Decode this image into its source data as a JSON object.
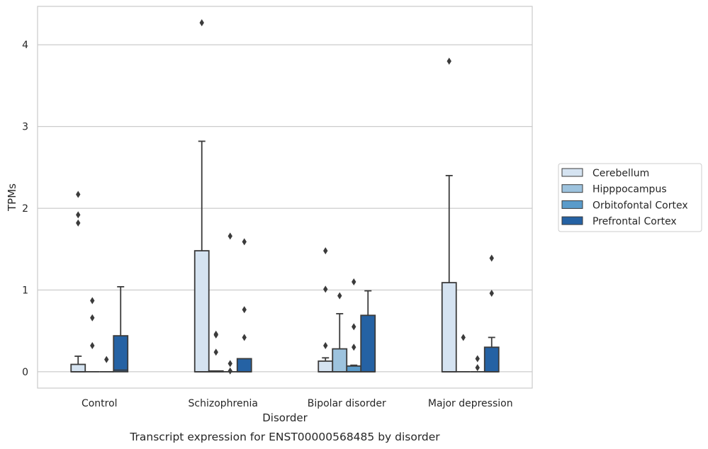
{
  "chart_data": {
    "type": "box",
    "title": "",
    "caption": "Transcript expression for ENST00000568485 by disorder",
    "xlabel": "Disorder",
    "ylabel": "TPMs",
    "ylim": [
      -0.2,
      4.47
    ],
    "yticks": [
      0,
      1,
      2,
      3,
      4
    ],
    "grid": "horizontal",
    "legend_position": "right",
    "categories": [
      "Control",
      "Schizophrenia",
      "Bipolar disorder",
      "Major depression"
    ],
    "series": [
      {
        "name": "Cerebellum",
        "color": "#d5e3f1",
        "boxes": [
          {
            "q1": 0.0,
            "median": 0.0,
            "q3": 0.09,
            "whisker_low": 0.0,
            "whisker_high": 0.19,
            "outliers": [
              1.82,
              1.92,
              2.17
            ]
          },
          {
            "q1": 0.0,
            "median": 0.0,
            "q3": 1.48,
            "whisker_low": 0.0,
            "whisker_high": 2.82,
            "outliers": [
              4.27
            ]
          },
          {
            "q1": 0.0,
            "median": 0.0,
            "q3": 0.13,
            "whisker_low": 0.0,
            "whisker_high": 0.17,
            "outliers": [
              0.32,
              1.01,
              1.48
            ]
          },
          {
            "q1": 0.0,
            "median": 0.0,
            "q3": 1.09,
            "whisker_low": 0.0,
            "whisker_high": 2.4,
            "outliers": [
              3.8
            ]
          }
        ]
      },
      {
        "name": "Hipppocampus",
        "color": "#9dc3de",
        "boxes": [
          {
            "q1": 0.0,
            "median": 0.0,
            "q3": 0.0,
            "whisker_low": 0.0,
            "whisker_high": 0.0,
            "outliers": [
              0.32,
              0.66,
              0.87
            ]
          },
          {
            "q1": 0.0,
            "median": 0.0,
            "q3": 0.01,
            "whisker_low": 0.0,
            "whisker_high": 0.01,
            "outliers": [
              0.24,
              0.45,
              0.46
            ]
          },
          {
            "q1": 0.0,
            "median": 0.0,
            "q3": 0.28,
            "whisker_low": 0.0,
            "whisker_high": 0.71,
            "outliers": [
              0.93
            ]
          },
          {
            "q1": 0.0,
            "median": 0.0,
            "q3": 0.0,
            "whisker_low": 0.0,
            "whisker_high": 0.0,
            "outliers": [
              0.42
            ]
          }
        ]
      },
      {
        "name": "Orbitofontal Cortex",
        "color": "#5a9bca",
        "boxes": [
          {
            "q1": 0.0,
            "median": 0.0,
            "q3": 0.0,
            "whisker_low": 0.0,
            "whisker_high": 0.0,
            "outliers": [
              0.15
            ]
          },
          {
            "q1": 0.0,
            "median": 0.0,
            "q3": 0.0,
            "whisker_low": 0.0,
            "whisker_high": 0.0,
            "outliers": [
              0.01,
              0.1,
              1.66
            ]
          },
          {
            "q1": 0.0,
            "median": 0.0,
            "q3": 0.07,
            "whisker_low": 0.0,
            "whisker_high": 0.08,
            "outliers": [
              0.3,
              0.55,
              1.1
            ]
          },
          {
            "q1": 0.0,
            "median": 0.0,
            "q3": 0.0,
            "whisker_low": 0.0,
            "whisker_high": 0.0,
            "outliers": [
              0.05,
              0.16
            ]
          }
        ]
      },
      {
        "name": "Prefrontal Cortex",
        "color": "#2562a4",
        "boxes": [
          {
            "q1": 0.0,
            "median": 0.02,
            "q3": 0.44,
            "whisker_low": 0.0,
            "whisker_high": 1.04,
            "outliers": []
          },
          {
            "q1": 0.0,
            "median": 0.0,
            "q3": 0.16,
            "whisker_low": 0.0,
            "whisker_high": 0.16,
            "outliers": [
              0.42,
              0.76,
              1.59
            ]
          },
          {
            "q1": 0.0,
            "median": 0.0,
            "q3": 0.69,
            "whisker_low": 0.0,
            "whisker_high": 0.99,
            "outliers": []
          },
          {
            "q1": 0.0,
            "median": 0.0,
            "q3": 0.3,
            "whisker_low": 0.0,
            "whisker_high": 0.42,
            "outliers": [
              0.96,
              1.39
            ]
          }
        ]
      }
    ]
  }
}
